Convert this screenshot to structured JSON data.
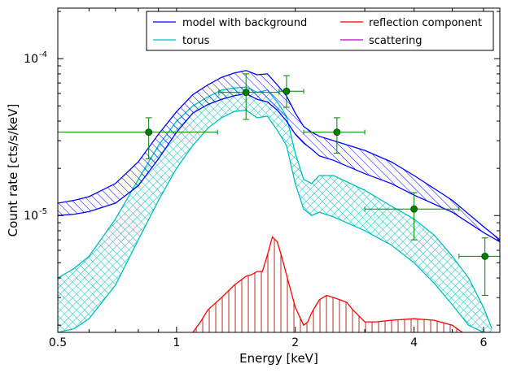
{
  "chart_data": {
    "type": "line",
    "xlabel": "Energy [keV]",
    "ylabel": "Count rate [cts/s/keV]",
    "x_scale": "log",
    "y_scale": "log",
    "xlim": [
      0.5,
      6.6
    ],
    "ylim": [
      1.8e-06,
      0.00021
    ],
    "x_ticks": [
      {
        "value": 0.5,
        "label": "0.5"
      },
      {
        "value": 1,
        "label": "1"
      },
      {
        "value": 2,
        "label": "2"
      },
      {
        "value": 4,
        "label": "4"
      },
      {
        "value": 6,
        "label": "6"
      }
    ],
    "y_ticks": [
      {
        "value": 1e-05,
        "label": "10",
        "exp": "-5"
      },
      {
        "value": 0.0001,
        "label": "10",
        "exp": "-4"
      }
    ],
    "legend": {
      "placement": "top-right",
      "entries": [
        {
          "label": "model with background",
          "color": "#0000ff"
        },
        {
          "label": "reflection component",
          "color": "#ff0000"
        },
        {
          "label": "torus",
          "color": "#00bfbf"
        },
        {
          "label": "scattering",
          "color": "#bf00bf"
        }
      ]
    },
    "series": [
      {
        "name": "model with background",
        "color": "#0000ff",
        "hatch": "diagonal",
        "x": [
          0.5,
          0.55,
          0.6,
          0.7,
          0.8,
          0.9,
          1.0,
          1.1,
          1.2,
          1.3,
          1.4,
          1.5,
          1.6,
          1.7,
          1.8,
          1.9,
          2.0,
          2.1,
          2.2,
          2.3,
          2.5,
          3.0,
          3.5,
          4.0,
          5.0,
          6.0,
          6.6
        ],
        "upper": [
          1.2e-05,
          1.25e-05,
          1.32e-05,
          1.6e-05,
          2.2e-05,
          3.3e-05,
          4.6e-05,
          5.9e-05,
          6.8e-05,
          7.6e-05,
          8.1e-05,
          8.4e-05,
          7.9e-05,
          8e-05,
          6.8e-05,
          5.8e-05,
          4.5e-05,
          3.7e-05,
          3.4e-05,
          3.2e-05,
          3e-05,
          2.6e-05,
          2.2e-05,
          1.8e-05,
          1.25e-05,
          8.5e-06,
          7e-06
        ],
        "lower": [
          1e-05,
          1.02e-05,
          1.06e-05,
          1.2e-05,
          1.55e-05,
          2.3e-05,
          3.4e-05,
          4.5e-05,
          5.1e-05,
          5.5e-05,
          5.8e-05,
          6e-05,
          5.5e-05,
          5.3e-05,
          4.7e-05,
          4e-05,
          3.3e-05,
          2.9e-05,
          2.65e-05,
          2.4e-05,
          2.25e-05,
          1.85e-05,
          1.6e-05,
          1.35e-05,
          1.05e-05,
          7.8e-06,
          6.8e-06
        ]
      },
      {
        "name": "torus",
        "color": "#00bfbf",
        "hatch": "cross",
        "x": [
          0.5,
          0.55,
          0.6,
          0.7,
          0.8,
          0.9,
          1.0,
          1.1,
          1.2,
          1.3,
          1.4,
          1.5,
          1.6,
          1.7,
          1.8,
          1.9,
          2.0,
          2.1,
          2.2,
          2.3,
          2.5,
          3.0,
          3.5,
          4.0,
          4.5,
          5.0,
          5.5,
          6.0,
          6.3
        ],
        "upper": [
          4e-06,
          4.6e-06,
          5.5e-06,
          9.5e-06,
          1.7e-05,
          2.8e-05,
          4e-05,
          5e-05,
          5.7e-05,
          6.3e-05,
          6.5e-05,
          6.6e-05,
          6.1e-05,
          6.3e-05,
          5.3e-05,
          4.3e-05,
          2.5e-05,
          1.7e-05,
          1.6e-05,
          1.8e-05,
          1.8e-05,
          1.45e-05,
          1.15e-05,
          9.5e-06,
          7.5e-06,
          5.5e-06,
          4e-06,
          2.6e-06,
          1.9e-06
        ],
        "lower": [
          1.8e-06,
          1.9e-06,
          2.2e-06,
          3.6e-06,
          7e-06,
          1.25e-05,
          2e-05,
          2.8e-05,
          3.6e-05,
          4.2e-05,
          4.6e-05,
          4.7e-05,
          4.2e-05,
          4.3e-05,
          3.5e-05,
          2.8e-05,
          1.6e-05,
          1.1e-05,
          1e-05,
          1.05e-05,
          9.8e-06,
          8e-06,
          6.5e-06,
          5e-06,
          3.7e-06,
          2.7e-06,
          2e-06,
          1.8e-06,
          1.8e-06
        ]
      },
      {
        "name": "reflection component",
        "color": "#ff0000",
        "hatch": "vertical",
        "x": [
          1.1,
          1.15,
          1.2,
          1.3,
          1.4,
          1.5,
          1.55,
          1.6,
          1.65,
          1.7,
          1.75,
          1.8,
          1.85,
          1.9,
          2.0,
          2.1,
          2.15,
          2.2,
          2.3,
          2.4,
          2.5,
          2.6,
          2.7,
          2.8,
          3.0,
          3.2,
          3.5,
          4.0,
          4.5,
          5.0,
          5.3
        ],
        "upper": [
          1.8e-06,
          2.1e-06,
          2.5e-06,
          3e-06,
          3.6e-06,
          4.1e-06,
          4.2e-06,
          4.4e-06,
          4.4e-06,
          5.6e-06,
          7.3e-06,
          6.8e-06,
          5.4e-06,
          4.2e-06,
          2.6e-06,
          2e-06,
          2.1e-06,
          2.4e-06,
          2.9e-06,
          3.1e-06,
          3e-06,
          2.9e-06,
          2.8e-06,
          2.5e-06,
          2.1e-06,
          2.1e-06,
          2.15e-06,
          2.2e-06,
          2.15e-06,
          2e-06,
          1.8e-06
        ],
        "lower": [
          1.8e-06,
          1.8e-06,
          1.8e-06,
          1.8e-06,
          1.8e-06,
          1.8e-06,
          1.8e-06,
          1.8e-06,
          1.8e-06,
          1.8e-06,
          1.8e-06,
          1.8e-06,
          1.8e-06,
          1.8e-06,
          1.8e-06,
          1.8e-06,
          1.8e-06,
          1.8e-06,
          1.8e-06,
          1.8e-06,
          1.8e-06,
          1.8e-06,
          1.8e-06,
          1.8e-06,
          1.8e-06,
          1.8e-06,
          1.8e-06,
          1.8e-06,
          1.8e-06,
          1.8e-06,
          1.8e-06
        ]
      },
      {
        "name": "scattering",
        "color": "#bf00bf",
        "x": [],
        "y": []
      }
    ],
    "data_points": {
      "color": "#008000",
      "points": [
        {
          "x": 0.85,
          "y": 3.4e-05,
          "xerr": [
            0.5,
            1.27
          ],
          "yerr": [
            2.3e-05,
            4.2e-05
          ]
        },
        {
          "x": 1.5,
          "y": 6.1e-05,
          "xerr": [
            1.28,
            1.82
          ],
          "yerr": [
            4.1e-05,
            8e-05
          ]
        },
        {
          "x": 1.9,
          "y": 6.2e-05,
          "xerr": [
            1.82,
            2.1
          ],
          "yerr": [
            4.9e-05,
            7.8e-05
          ]
        },
        {
          "x": 2.55,
          "y": 3.4e-05,
          "xerr": [
            2.1,
            3.0
          ],
          "yerr": [
            2.5e-05,
            4.2e-05
          ]
        },
        {
          "x": 4.0,
          "y": 1.1e-05,
          "xerr": [
            3.0,
            5.2
          ],
          "yerr": [
            7e-06,
            1.4e-05
          ]
        },
        {
          "x": 6.05,
          "y": 5.5e-06,
          "xerr": [
            5.2,
            6.6
          ],
          "yerr": [
            3.1e-06,
            7.2e-06
          ]
        }
      ]
    }
  }
}
